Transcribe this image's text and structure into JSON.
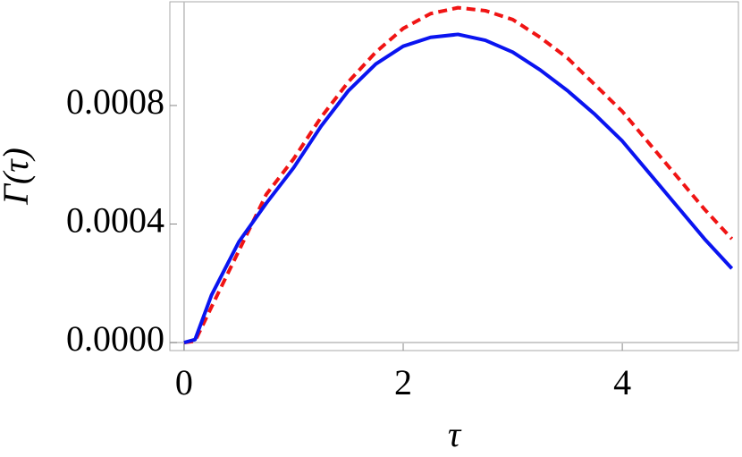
{
  "chart_data": {
    "type": "line",
    "xlabel": "τ",
    "ylabel": "Γ(τ)",
    "x": [
      0,
      0.1,
      0.25,
      0.5,
      0.75,
      1,
      1.25,
      1.5,
      1.75,
      2,
      2.25,
      2.5,
      2.75,
      3,
      3.25,
      3.5,
      3.75,
      4,
      4.25,
      4.5,
      4.75,
      5
    ],
    "series": [
      {
        "color": "#0a14f0",
        "dash": "solid",
        "values": [
          0,
          1e-05,
          0.00016,
          0.00034,
          0.00047,
          0.00059,
          0.00073,
          0.00085,
          0.00094,
          0.001,
          0.00103,
          0.00104,
          0.00102,
          0.00098,
          0.00092,
          0.00085,
          0.00077,
          0.00068,
          0.00057,
          0.00046,
          0.00035,
          0.00025
        ]
      },
      {
        "color": "#f01414",
        "dash": "dashed",
        "values": [
          0,
          5e-06,
          0.00012,
          0.00031,
          0.0005,
          0.00062,
          0.00076,
          0.00088,
          0.00098,
          0.00106,
          0.00111,
          0.00113,
          0.00112,
          0.00109,
          0.00103,
          0.00096,
          0.00087,
          0.00078,
          0.00067,
          0.00056,
          0.00045,
          0.00035
        ]
      }
    ],
    "xlim": [
      -0.13,
      5.06
    ],
    "ylim": [
      -2.7e-05,
      0.00115
    ],
    "xticks": [
      0,
      2,
      4
    ],
    "yticks": [
      {
        "value": 0,
        "label": "0.0000"
      },
      {
        "value": 0.0004,
        "label": "0.0004"
      },
      {
        "value": 0.0008,
        "label": "0.0008"
      }
    ]
  }
}
